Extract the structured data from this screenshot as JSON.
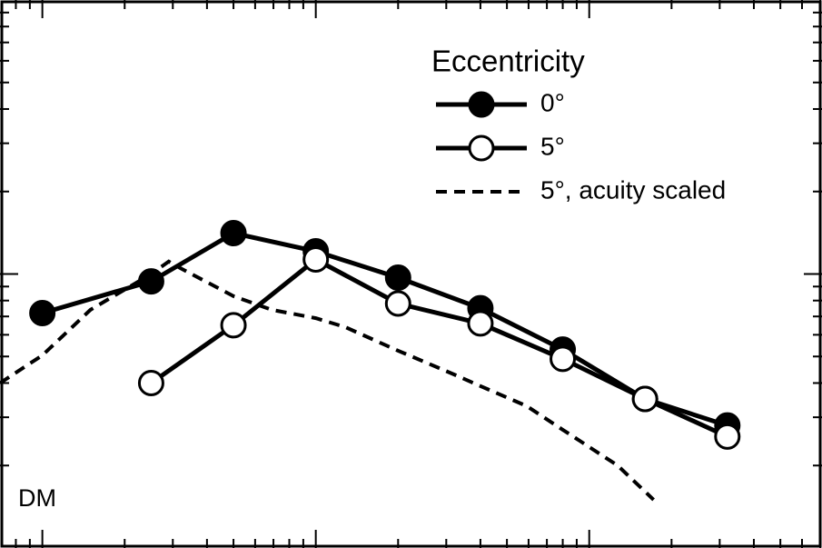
{
  "chart_data": {
    "type": "line",
    "annotation": "DM",
    "legend_title": "Eccentricity",
    "legend": "upper right",
    "xscale": "log",
    "yscale": "log",
    "xlim": [
      0.7,
      710
    ],
    "ylim": [
      0.1,
      10
    ],
    "xticks": [
      0.8,
      0.9,
      1,
      2,
      3,
      4,
      5,
      6,
      7,
      8,
      9,
      10,
      20,
      30,
      40,
      50,
      60,
      70,
      80,
      90,
      100,
      200,
      300,
      400,
      500,
      600,
      700
    ],
    "xmajor": [
      1,
      10,
      100
    ],
    "yticks": [
      0.2,
      0.3,
      0.4,
      0.5,
      0.6,
      0.7,
      0.8,
      0.9,
      1,
      2,
      3,
      4,
      5,
      6,
      7,
      8,
      9
    ],
    "ymajor": [
      1
    ],
    "series": [
      {
        "name": "0°",
        "color": "#000000",
        "marker": "filled",
        "dashed": false,
        "x": [
          1,
          2.5,
          5,
          10,
          20,
          40,
          80,
          160,
          320
        ],
        "values": [
          0.72,
          0.94,
          1.41,
          1.21,
          0.97,
          0.75,
          0.53,
          0.35,
          0.28
        ]
      },
      {
        "name": "5°",
        "color": "#000000",
        "marker": "open",
        "dashed": false,
        "x": [
          2.5,
          5,
          10,
          20,
          40,
          80,
          160,
          320
        ],
        "values": [
          0.4,
          0.65,
          1.13,
          0.78,
          0.66,
          0.49,
          0.35,
          0.255
        ]
      },
      {
        "name": "5°, acuity scaled",
        "color": "#000000",
        "marker": "none",
        "dashed": true,
        "x": [
          0.7,
          1,
          1.5,
          2.5,
          2.9,
          3.2,
          5,
          6.9,
          10,
          12.8,
          20,
          32,
          40,
          59,
          80,
          127,
          172
        ],
        "values": [
          0.4,
          0.505,
          0.74,
          1.0,
          1.11,
          1.05,
          0.83,
          0.74,
          0.69,
          0.64,
          0.525,
          0.43,
          0.39,
          0.33,
          0.27,
          0.2,
          0.15
        ]
      }
    ]
  }
}
